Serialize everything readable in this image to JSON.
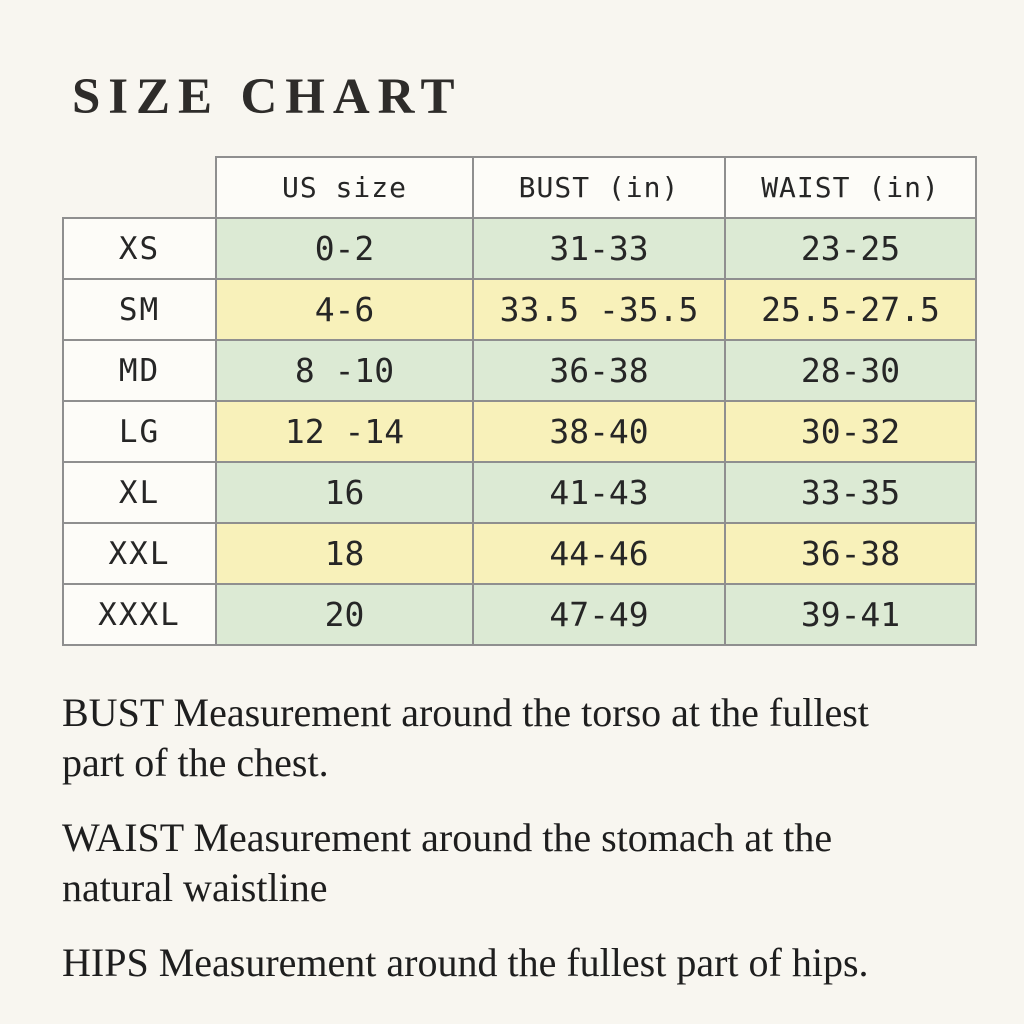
{
  "title": "SIZE CHART",
  "colors": {
    "page_bg": "#f8f6f0",
    "cell_white": "#fdfcf8",
    "row_green": "#dcead4",
    "row_yellow": "#f8f1ba",
    "border": "#8f8f8f",
    "text": "#262626",
    "title": "#2e2c2a"
  },
  "chart_data": {
    "type": "table",
    "title": "SIZE CHART",
    "columns": [
      "",
      "US size",
      "BUST (in)",
      "WAIST (in)"
    ],
    "units": "inches",
    "rows": [
      {
        "size": "XS",
        "us_size": "0-2",
        "bust_in": "31-33",
        "waist_in": "23-25",
        "tint": "green"
      },
      {
        "size": "SM",
        "us_size": "4-6",
        "bust_in": "33.5 -35.5",
        "waist_in": "25.5-27.5",
        "tint": "yellow"
      },
      {
        "size": "MD",
        "us_size": "8 -10",
        "bust_in": "36-38",
        "waist_in": "28-30",
        "tint": "green"
      },
      {
        "size": "LG",
        "us_size": "12 -14",
        "bust_in": "38-40",
        "waist_in": "30-32",
        "tint": "yellow"
      },
      {
        "size": "XL",
        "us_size": "16",
        "bust_in": "41-43",
        "waist_in": "33-35",
        "tint": "green"
      },
      {
        "size": "XXL",
        "us_size": "18",
        "bust_in": "44-46",
        "waist_in": "36-38",
        "tint": "yellow"
      },
      {
        "size": "XXXL",
        "us_size": "20",
        "bust_in": "47-49",
        "waist_in": "39-41",
        "tint": "green"
      }
    ]
  },
  "notes": [
    "BUST Measurement around the torso at the fullest\npart of the chest.",
    "WAIST Measurement around the stomach at the\nnatural waistline",
    "HIPS Measurement around the fullest part of hips."
  ]
}
